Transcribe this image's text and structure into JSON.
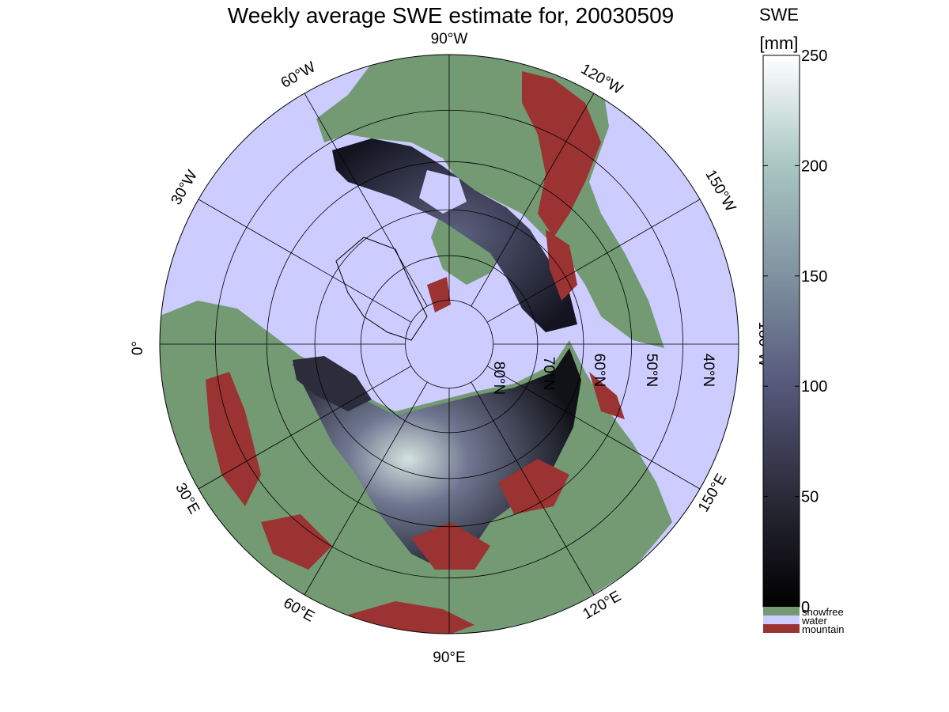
{
  "title": "Weekly average SWE estimate for, 20030509",
  "colors": {
    "water": "#ccccff",
    "snowfree": "#739a72",
    "mountain": "#9b3332",
    "snow_low": "#0a0a10",
    "snow_mid": "#555a78",
    "snow_high": "#c8dcd8",
    "grid": "#000000"
  },
  "projection": {
    "type": "north-polar-stereographic",
    "outer_latitude_label": "",
    "parallels": [
      80,
      70,
      60,
      50,
      40
    ],
    "meridians": [
      0,
      30,
      60,
      90,
      120,
      150,
      180,
      -150,
      -120,
      -90,
      -60,
      -30
    ]
  },
  "longitude_labels": [
    {
      "id": "90w",
      "text": "90°W"
    },
    {
      "id": "120w",
      "text": "120°W"
    },
    {
      "id": "150w",
      "text": "150°W"
    },
    {
      "id": "180w",
      "text": "180°W"
    },
    {
      "id": "150e",
      "text": "150°E"
    },
    {
      "id": "120e",
      "text": "120°E"
    },
    {
      "id": "90e",
      "text": "90°E"
    },
    {
      "id": "60e",
      "text": "60°E"
    },
    {
      "id": "30e",
      "text": "30°E"
    },
    {
      "id": "0",
      "text": "0°"
    },
    {
      "id": "30w",
      "text": "30°W"
    },
    {
      "id": "60w",
      "text": "60°W"
    }
  ],
  "latitude_labels": [
    {
      "id": "80n",
      "text": "80°N"
    },
    {
      "id": "70n",
      "text": "70°N"
    },
    {
      "id": "60n",
      "text": "60°N"
    },
    {
      "id": "50n",
      "text": "50°N"
    },
    {
      "id": "40n",
      "text": "40°N"
    }
  ],
  "colorbar": {
    "title_line1": "SWE",
    "title_line2": "[mm]",
    "ticks": [
      0,
      50,
      100,
      150,
      200,
      250
    ],
    "range": [
      0,
      250
    ],
    "categories": [
      {
        "id": "snowfree",
        "label": "snowfree",
        "color": "#739a72"
      },
      {
        "id": "water",
        "label": "water",
        "color": "#ccccff"
      },
      {
        "id": "mountain",
        "label": "mountain",
        "color": "#9b3332"
      }
    ]
  }
}
